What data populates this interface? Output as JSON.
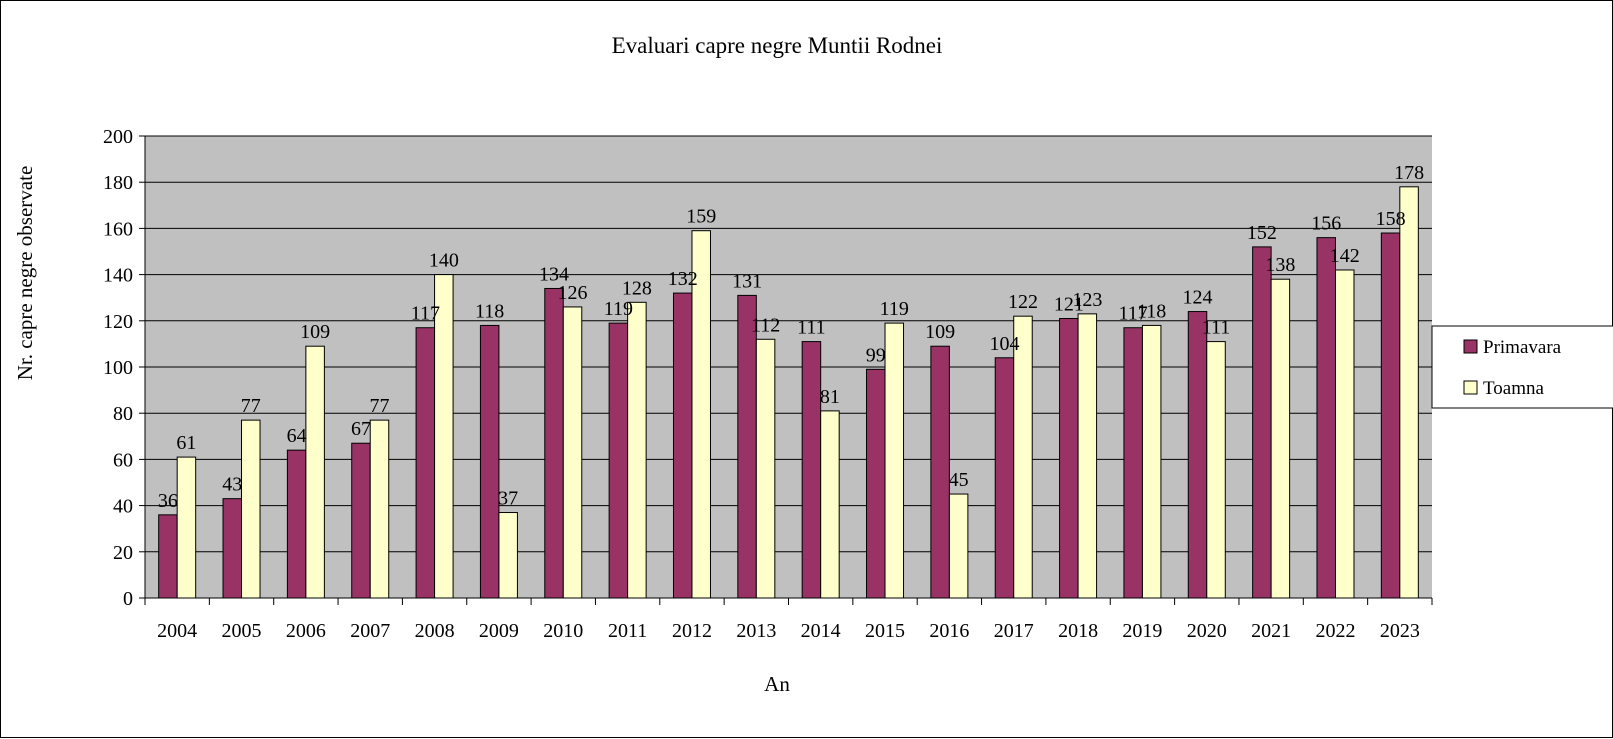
{
  "chart_data": {
    "type": "bar",
    "title": "Evaluari capre negre Muntii Rodnei",
    "xlabel": "An",
    "ylabel": "Nr. capre negre observate",
    "categories": [
      "2004",
      "2005",
      "2006",
      "2007",
      "2008",
      "2009",
      "2010",
      "2011",
      "2012",
      "2013",
      "2014",
      "2015",
      "2016",
      "2017",
      "2018",
      "2019",
      "2020",
      "2021",
      "2022",
      "2023"
    ],
    "series": [
      {
        "name": "Primavara",
        "color": "#993366",
        "values": [
          36,
          43,
          64,
          67,
          117,
          118,
          134,
          119,
          132,
          131,
          111,
          99,
          109,
          104,
          121,
          117,
          124,
          152,
          156,
          158
        ]
      },
      {
        "name": "Toamna",
        "color": "#FFFFCC",
        "values": [
          61,
          77,
          109,
          77,
          140,
          37,
          126,
          128,
          159,
          112,
          81,
          119,
          45,
          122,
          123,
          118,
          111,
          138,
          142,
          178
        ]
      }
    ],
    "ylim": [
      0,
      200
    ],
    "yticks": [
      0,
      20,
      40,
      60,
      80,
      100,
      120,
      140,
      160,
      180,
      200
    ],
    "grid": true,
    "plot_background": "#C0C0C0",
    "legend_position": "right"
  }
}
